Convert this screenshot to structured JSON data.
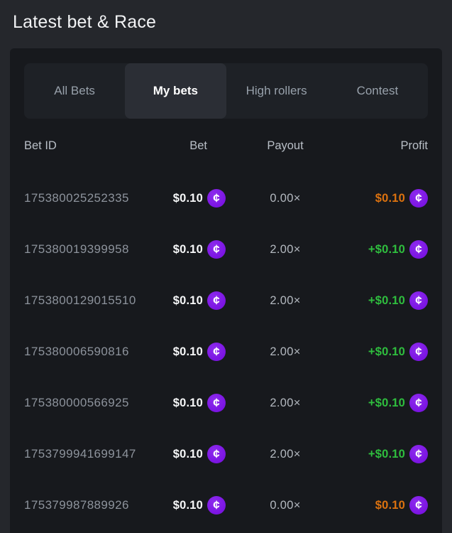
{
  "page": {
    "title": "Latest bet & Race"
  },
  "tabs": [
    {
      "label": "All Bets",
      "state": ""
    },
    {
      "label": "My bets",
      "state": "active"
    },
    {
      "label": "High rollers",
      "state": ""
    },
    {
      "label": "Contest",
      "state": ""
    }
  ],
  "icons": {
    "coin_glyph": "¢"
  },
  "colors": {
    "win": "#2fbe3e",
    "loss": "#dc720f",
    "coin": "#7b14e2",
    "panel": "#17191d",
    "background": "#25272c"
  },
  "table": {
    "headers": [
      "Bet ID",
      "Bet",
      "Payout",
      "Profit"
    ],
    "rows": [
      {
        "bet_id": "175380025252335",
        "bet": "$0.10",
        "payout": "0.00×",
        "profit": "$0.10",
        "profit_state": "loss"
      },
      {
        "bet_id": "175380019399958",
        "bet": "$0.10",
        "payout": "2.00×",
        "profit": "+$0.10",
        "profit_state": "win"
      },
      {
        "bet_id": "1753800129015510",
        "bet": "$0.10",
        "payout": "2.00×",
        "profit": "+$0.10",
        "profit_state": "win"
      },
      {
        "bet_id": "175380006590816",
        "bet": "$0.10",
        "payout": "2.00×",
        "profit": "+$0.10",
        "profit_state": "win"
      },
      {
        "bet_id": "175380000566925",
        "bet": "$0.10",
        "payout": "2.00×",
        "profit": "+$0.10",
        "profit_state": "win"
      },
      {
        "bet_id": "1753799941699147",
        "bet": "$0.10",
        "payout": "2.00×",
        "profit": "+$0.10",
        "profit_state": "win"
      },
      {
        "bet_id": "175379987889926",
        "bet": "$0.10",
        "payout": "0.00×",
        "profit": "$0.10",
        "profit_state": "loss"
      }
    ]
  }
}
